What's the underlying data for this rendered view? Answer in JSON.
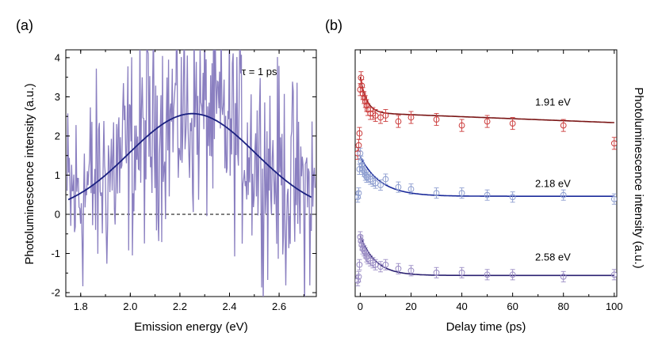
{
  "chart_data": [
    {
      "panel": "(a)",
      "type": "line",
      "xlabel": "Emission energy (eV)",
      "ylabel": "Photoluminescence intensity (a.u.)",
      "xlim": [
        1.74,
        2.75
      ],
      "ylim": [
        -2.1,
        4.2
      ],
      "x_ticks": [
        1.8,
        2.0,
        2.2,
        2.4,
        2.6
      ],
      "x_tick_labels": [
        "1.8",
        "2.0",
        "2.2",
        "2.4",
        "2.6"
      ],
      "y_ticks": [
        -2,
        -1,
        0,
        1,
        2,
        3,
        4
      ],
      "y_tick_labels": [
        "-2",
        "-1",
        "0",
        "1",
        "2",
        "3",
        "4"
      ],
      "annotation": "τ = 1 ps",
      "baseline": 0,
      "colors": {
        "data": "#8a7fc0",
        "fit": "#1a2080"
      },
      "fit": {
        "shape": "gaussian",
        "amplitude": 2.57,
        "center": 2.25,
        "sigma": 0.255,
        "x_range": [
          1.75,
          2.73
        ]
      },
      "noisy_data_amplitude": 1.3
    },
    {
      "panel": "(b)",
      "type": "scatter",
      "xlabel": "Delay time (ps)",
      "ylabel": "Photoluminescence intensity (a.u.)",
      "xlim": [
        -2,
        101
      ],
      "x_ticks": [
        0,
        20,
        40,
        60,
        80,
        100
      ],
      "x_tick_labels": [
        "0",
        "20",
        "40",
        "60",
        "80",
        "100"
      ],
      "y_tick_labels": [],
      "series": [
        {
          "name": "1.91 eV",
          "color": "#cc3d3d",
          "fit_color": "#7a1515",
          "x": [
            -1,
            -0.6,
            -0.3,
            0,
            0.3,
            0.6,
            1,
            1.5,
            2,
            2.5,
            3,
            4,
            5,
            6,
            8,
            10,
            15,
            20,
            30,
            40,
            50,
            60,
            80,
            100
          ],
          "y": [
            1.6,
            1.8,
            2.1,
            3.2,
            3.5,
            3.3,
            3.1,
            3.0,
            2.9,
            2.8,
            2.7,
            2.6,
            2.6,
            2.55,
            2.5,
            2.55,
            2.4,
            2.5,
            2.45,
            2.3,
            2.4,
            2.35,
            2.3,
            1.85
          ],
          "err": 0.15,
          "fit": {
            "y0": 2.62,
            "A": 0.9,
            "tau": 2.5,
            "slope": -0.0025
          }
        },
        {
          "name": "2.18 eV",
          "color": "#8e9ed0",
          "fit_color": "#1a2a9a",
          "x": [
            -1,
            -0.6,
            -0.3,
            0,
            0.3,
            0.6,
            1,
            1.5,
            2,
            2.5,
            3,
            4,
            5,
            6,
            8,
            10,
            15,
            20,
            30,
            40,
            50,
            60,
            80,
            100
          ],
          "y": [
            0.5,
            0.6,
            1.2,
            1.6,
            1.4,
            1.3,
            1.2,
            1.15,
            1.05,
            1.0,
            1.0,
            0.95,
            0.9,
            0.85,
            0.8,
            0.95,
            0.75,
            0.7,
            0.6,
            0.6,
            0.55,
            0.5,
            0.55,
            0.45
          ],
          "err": 0.13,
          "fit": {
            "y0": 0.52,
            "A": 1.0,
            "tau": 8
          }
        },
        {
          "name": "2.58 eV",
          "color": "#9a8cc4",
          "fit_color": "#2a2070",
          "x": [
            -1,
            -0.6,
            -0.3,
            0,
            0.3,
            0.6,
            1,
            1.5,
            2,
            2.5,
            3,
            4,
            5,
            6,
            8,
            10,
            15,
            20,
            30,
            40,
            50,
            60,
            80,
            100
          ],
          "y": [
            -1.6,
            -1.5,
            -1.2,
            -0.5,
            -0.6,
            -0.7,
            -0.8,
            -0.85,
            -0.9,
            -1.0,
            -1.05,
            -1.1,
            -1.15,
            -1.2,
            -1.25,
            -1.2,
            -1.3,
            -1.35,
            -1.4,
            -1.4,
            -1.45,
            -1.45,
            -1.5,
            -1.45
          ],
          "err": 0.13,
          "fit": {
            "y0": -1.47,
            "A": 1.0,
            "tau": 6
          }
        }
      ]
    }
  ]
}
